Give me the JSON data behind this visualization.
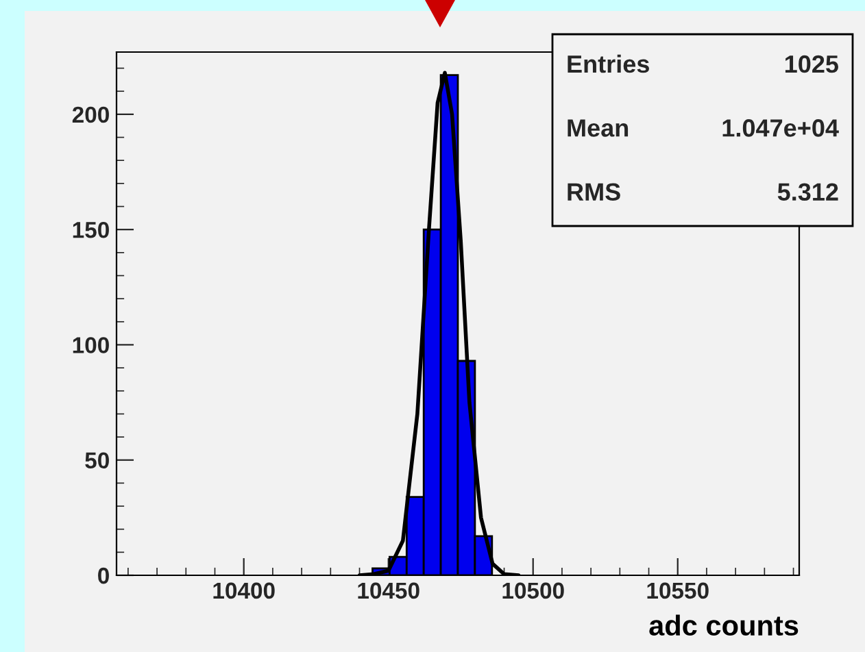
{
  "chart_data": {
    "type": "histogram",
    "xlabel": "adc counts",
    "bins": [
      10444.5,
      10450.4,
      10456.3,
      10462.2,
      10468.1,
      10474.0,
      10479.9,
      10485.8
    ],
    "series": [
      {
        "type": "histogram",
        "color": "#0000ee",
        "values": [
          3,
          8,
          34,
          150,
          217,
          93,
          17
        ]
      },
      {
        "type": "line",
        "color": "#000000",
        "x": [
          10440,
          10445,
          10450,
          10455,
          10460,
          10464,
          10467,
          10469.5,
          10472,
          10475,
          10478,
          10482,
          10486,
          10490,
          10495
        ],
        "values": [
          0,
          0.5,
          2,
          15,
          70,
          150,
          205,
          218,
          200,
          145,
          75,
          25,
          5,
          0.5,
          0
        ]
      }
    ],
    "xlim": [
      10356,
      10592
    ],
    "ylim": [
      0,
      227
    ],
    "xticks": [
      10400,
      10450,
      10500,
      10550
    ],
    "yticks": [
      0,
      50,
      100,
      150,
      200
    ],
    "grid": false,
    "annotations": [
      "Entries",
      "1025",
      "Mean",
      "1.047e+04",
      "RMS",
      "5.312"
    ]
  }
}
